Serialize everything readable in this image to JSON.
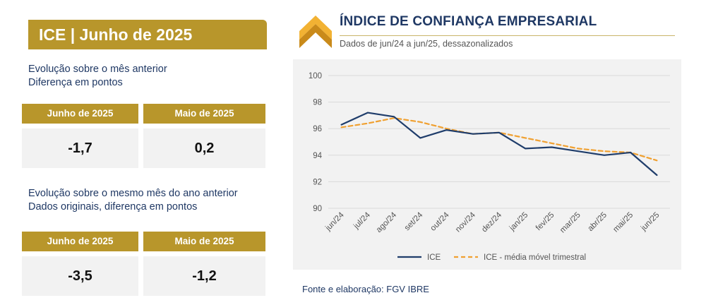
{
  "panel": {
    "title": "ICE | Junho de 2025",
    "section1": {
      "line1": "Evolução sobre o mês anterior",
      "line2": "Diferença em pontos"
    },
    "table1": {
      "headers": [
        "Junho de 2025",
        "Maio de 2025"
      ],
      "values": [
        "-1,7",
        "0,2"
      ]
    },
    "section2": {
      "line1": "Evolução sobre o mesmo mês do ano anterior",
      "line2": "Dados originais, diferença em pontos"
    },
    "table2": {
      "headers": [
        "Junho de 2025",
        "Maio de 2025"
      ],
      "values": [
        "-3,5",
        "-1,2"
      ]
    }
  },
  "chart": {
    "heading": "ÍNDICE DE CONFIANÇA EMPRESARIAL",
    "subheading": "Dados de jun/24 a jun/25, dessazonalizados",
    "source": "Fonte e elaboração: FGV IBRE"
  },
  "colors": {
    "gold": "#b8962b",
    "navy": "#1f3864",
    "ice_line": "#1f3d6b",
    "avg_line": "#f0a030",
    "logo_light": "#f2b233",
    "logo_dark": "#c98a1a"
  },
  "icons": {
    "logo": "gold-chevron-logo-icon"
  },
  "chart_data": {
    "type": "line",
    "categories": [
      "jun/24",
      "jul/24",
      "ago/24",
      "set/24",
      "out/24",
      "nov/24",
      "dez/24",
      "jan/25",
      "fev/25",
      "mar/25",
      "abr/25",
      "mai/25",
      "jun/25"
    ],
    "series": [
      {
        "name": "ICE",
        "values": [
          96.3,
          97.2,
          96.9,
          95.3,
          95.9,
          95.6,
          95.7,
          94.5,
          94.6,
          94.3,
          94.0,
          94.2,
          92.5
        ]
      },
      {
        "name": "ICE - média móvel trimestral",
        "values": [
          96.1,
          96.4,
          96.8,
          96.5,
          96.0,
          95.6,
          95.7,
          95.3,
          94.9,
          94.5,
          94.3,
          94.2,
          93.6
        ]
      }
    ],
    "ylim": [
      90,
      100
    ],
    "yticks": [
      "90",
      "92",
      "94",
      "96",
      "98",
      "100"
    ],
    "grid": "horizontal",
    "legend": "bottom-center"
  }
}
